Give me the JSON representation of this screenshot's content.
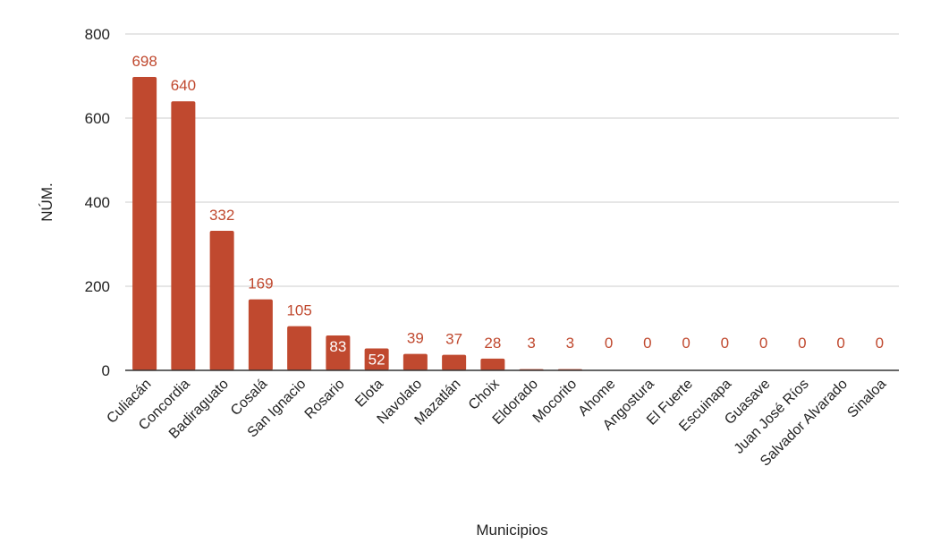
{
  "chart_data": {
    "type": "bar",
    "xlabel": "Municipios",
    "ylabel": "NÚM.",
    "ylim": [
      0,
      800
    ],
    "yticks": [
      0,
      200,
      400,
      600,
      800
    ],
    "grid": true,
    "categories": [
      "Culiacán",
      "Concordia",
      "Badiraguato",
      "Cosalá",
      "San Ignacio",
      "Rosario",
      "Elota",
      "Navolato",
      "Mazatlán",
      "Choix",
      "Eldorado",
      "Mocorito",
      "Ahome",
      "Angostura",
      "El Fuerte",
      "Escuinapa",
      "Guasave",
      "Juan José Ríos",
      "Salvador Alvarado",
      "Sinaloa"
    ],
    "values": [
      698,
      640,
      332,
      169,
      105,
      83,
      52,
      39,
      37,
      28,
      3,
      3,
      0,
      0,
      0,
      0,
      0,
      0,
      0,
      0
    ],
    "bar_color": "#c0492f",
    "label_color": "#c0492f",
    "inside_label_color": "#ffffff"
  }
}
